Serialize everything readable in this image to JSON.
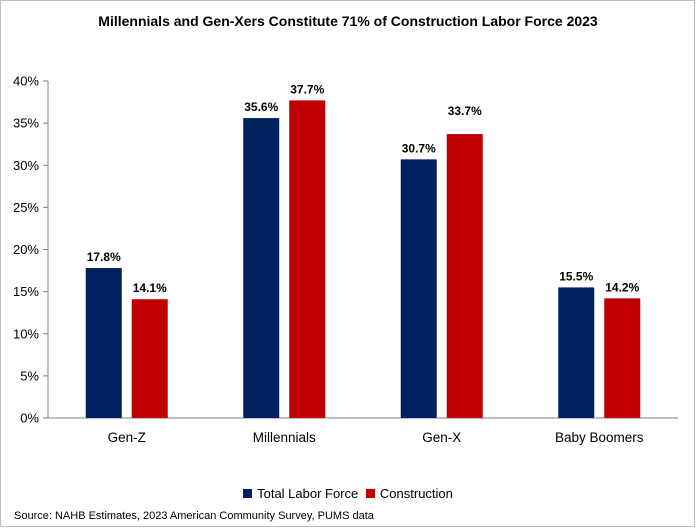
{
  "chart_data": {
    "type": "bar",
    "title": "Millennials and Gen-Xers Constitute 71% of Construction Labor Force 2023",
    "categories": [
      "Gen-Z",
      "Millennials",
      "Gen-X",
      "Baby Boomers"
    ],
    "series": [
      {
        "name": "Total Labor Force",
        "color": "#002060",
        "values": [
          17.8,
          35.6,
          30.7,
          15.5
        ],
        "labels": [
          "17.8%",
          "35.6%",
          "30.7%",
          "15.5%"
        ]
      },
      {
        "name": "Construction",
        "color": "#C00000",
        "values": [
          14.1,
          37.7,
          33.7,
          14.2
        ],
        "labels": [
          "14.1%",
          "37.7%",
          "33.7%",
          "14.2%"
        ]
      }
    ],
    "ylim": [
      0,
      40
    ],
    "yticks": [
      0,
      5,
      10,
      15,
      20,
      25,
      30,
      35,
      40
    ],
    "ytick_labels": [
      "0%",
      "5%",
      "10%",
      "15%",
      "20%",
      "25%",
      "30%",
      "35%",
      "40%"
    ],
    "xlabel": "",
    "ylabel": "",
    "legend_position": "bottom",
    "source": "Source: NAHB Estimates, 2023 American Community Survey, PUMS data"
  }
}
